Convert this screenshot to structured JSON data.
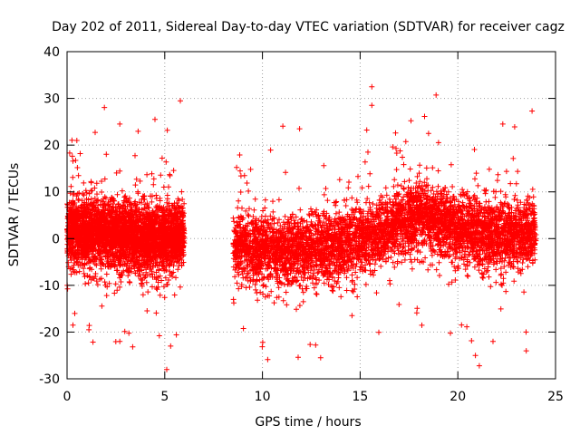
{
  "chart_data": {
    "type": "scatter",
    "title": "Day 202 of 2011, Sidereal Day-to-day VTEC variation (SDTVAR) for receiver cagz",
    "xlabel": "GPS time / hours",
    "ylabel": "SDTVAR / TECUs",
    "xlim": [
      0,
      25
    ],
    "ylim": [
      -30,
      40
    ],
    "xticks": [
      0,
      5,
      10,
      15,
      20,
      25
    ],
    "yticks": [
      -30,
      -20,
      -10,
      0,
      10,
      20,
      30,
      40
    ],
    "xtick_labels": [
      "0",
      "5",
      "10",
      "15",
      "20",
      "25"
    ],
    "ytick_labels": [
      "-30",
      "-20",
      "-10",
      "0",
      "10",
      "20",
      "30",
      "40"
    ],
    "grid": true,
    "marker": "+",
    "color": "#ff0000",
    "data_gap_hours": [
      6.0,
      8.5
    ],
    "series": [
      {
        "name": "SDTVAR",
        "segments": [
          {
            "x_range": [
              0.0,
              6.0
            ],
            "center": [
              [
                0,
                1.5
              ],
              [
                2,
                1.0
              ],
              [
                4,
                0.0
              ],
              [
                6,
                0.5
              ]
            ],
            "spread": 3.5
          },
          {
            "x_range": [
              8.5,
              16.5
            ],
            "center": [
              [
                8.5,
                -1.5
              ],
              [
                11,
                -3.0
              ],
              [
                13,
                -2.0
              ],
              [
                15,
                0.0
              ],
              [
                16.5,
                1.5
              ]
            ],
            "spread": 3.5
          },
          {
            "x_range": [
              16.5,
              24.0
            ],
            "center": [
              [
                16.5,
                2.5
              ],
              [
                18,
                5.0
              ],
              [
                20,
                2.0
              ],
              [
                22,
                1.0
              ],
              [
                24,
                1.0
              ]
            ],
            "spread": 3.5
          }
        ],
        "notable_points": [
          [
            0.5,
            21
          ],
          [
            0.3,
            -18.5
          ],
          [
            2.7,
            24.5
          ],
          [
            4.5,
            25.5
          ],
          [
            5.8,
            29.5
          ],
          [
            5.1,
            -28
          ],
          [
            2.7,
            -22
          ],
          [
            5.3,
            -23
          ],
          [
            11.9,
            23.5
          ],
          [
            15.6,
            32.5
          ],
          [
            15.6,
            28.5
          ],
          [
            17.6,
            25.2
          ],
          [
            18.5,
            22.5
          ],
          [
            22.3,
            24.5
          ],
          [
            23.8,
            27.3
          ],
          [
            20.9,
            -25
          ],
          [
            21.1,
            -27.2
          ],
          [
            21.8,
            -22
          ],
          [
            23.5,
            -24
          ],
          [
            15.4,
            18.5
          ],
          [
            19.0,
            14.5
          ]
        ]
      }
    ]
  }
}
